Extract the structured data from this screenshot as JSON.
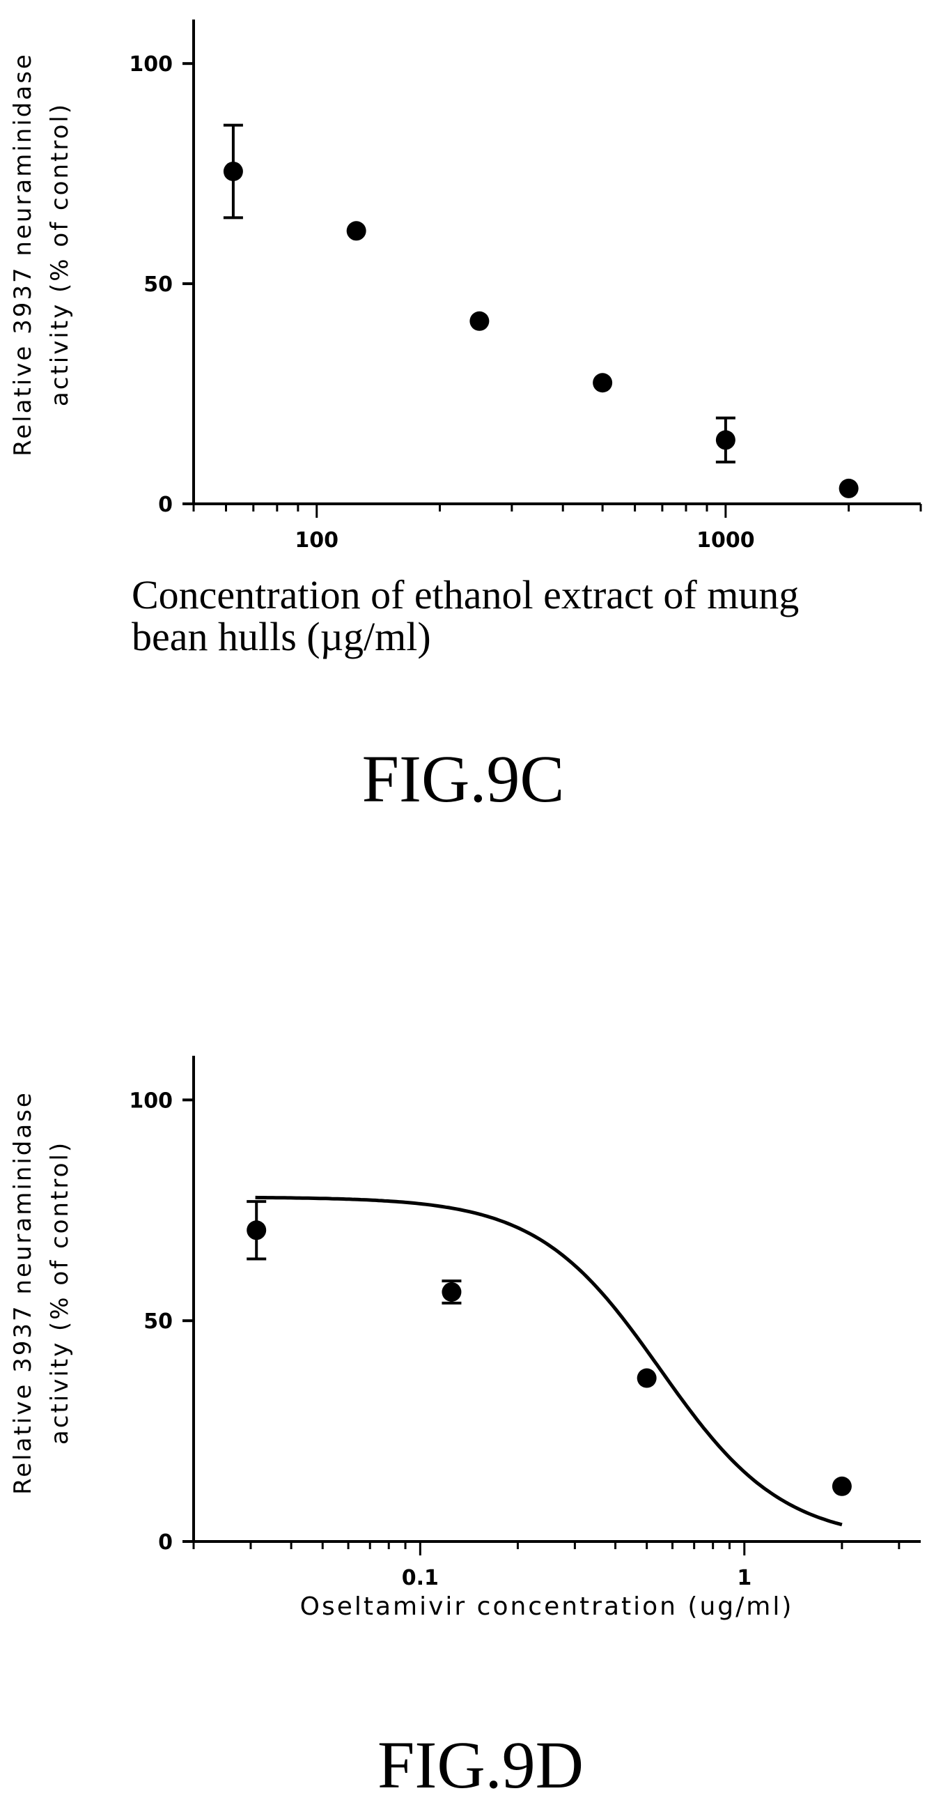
{
  "chart_data": [
    {
      "type": "scatter",
      "xscale": "log",
      "xlim": [
        50,
        3000
      ],
      "ylim": [
        0,
        110
      ],
      "x_ticks": [
        100,
        1000
      ],
      "x_tick_labels": [
        "100",
        "1000"
      ],
      "y_ticks": [
        0,
        50,
        100
      ],
      "y_tick_labels": [
        "0",
        "50",
        "100"
      ],
      "ylabel_lines": [
        "Relative 3937 neuraminidase",
        "activity (% of control)"
      ],
      "xlabel_lines": [
        "Concentration of ethanol extract of mung",
        "bean hulls (µg/ml)"
      ],
      "caption": "FIG.9C",
      "series": [
        {
          "x": [
            62.5,
            125,
            250,
            500,
            1000,
            2000
          ],
          "y": [
            75.5,
            62,
            41.5,
            27.5,
            14.5,
            3.5
          ],
          "error": [
            10.5,
            0,
            0,
            0,
            5,
            0
          ]
        }
      ],
      "curve": null
    },
    {
      "type": "scatter",
      "xscale": "log",
      "xlim": [
        0.02,
        3.5
      ],
      "ylim": [
        0,
        110
      ],
      "x_ticks": [
        0.1,
        1
      ],
      "x_tick_labels": [
        "0.1",
        "1"
      ],
      "y_ticks": [
        0,
        50,
        100
      ],
      "y_tick_labels": [
        "0",
        "50",
        "100"
      ],
      "ylabel_lines": [
        "Relative 3937 neuraminidase",
        "activity (% of control)"
      ],
      "xlabel_lines": [
        "Oseltamivir concentration (ug/ml)"
      ],
      "caption": "FIG.9D",
      "series": [
        {
          "x": [
            0.03125,
            0.125,
            0.5,
            2
          ],
          "y": [
            70.5,
            56.5,
            37,
            12.5
          ],
          "error": [
            6.5,
            2.5,
            0,
            0
          ]
        }
      ],
      "curve": {
        "type": "sigmoid",
        "top": 78,
        "bottom": 0,
        "ec50": 0.55,
        "hill": 2.3,
        "x_range": [
          0.031,
          2.0
        ]
      }
    }
  ]
}
